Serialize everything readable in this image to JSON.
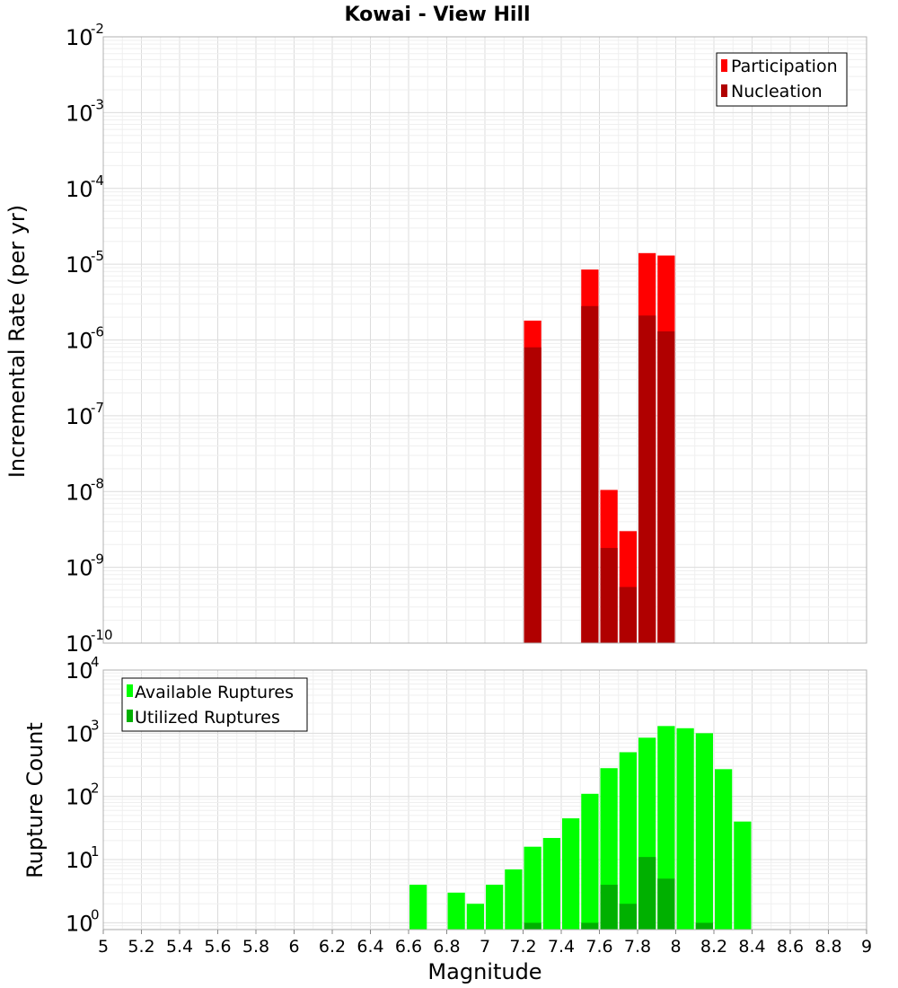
{
  "chart_data": [
    {
      "type": "bar",
      "title": "Kowai - View Hill",
      "xlabel": "Magnitude",
      "ylabel": "Incremental Rate (per yr)",
      "yscale": "log",
      "xlim": [
        5,
        9
      ],
      "ylim": [
        1e-10,
        0.01
      ],
      "y_tick_exponents": [
        -2,
        -3,
        -4,
        -5,
        -6,
        -7,
        -8,
        -9,
        -10
      ],
      "grid": true,
      "legend_position": "top-right",
      "bin_width": 0.1,
      "series": [
        {
          "name": "Participation",
          "color": "#ff0000",
          "x": [
            7.25,
            7.55,
            7.65,
            7.75,
            7.85,
            7.95
          ],
          "values": [
            1.8e-06,
            8.5e-06,
            1.05e-08,
            3e-09,
            1.4e-05,
            1.3e-05
          ]
        },
        {
          "name": "Nucleation",
          "color": "#b00000",
          "x": [
            7.25,
            7.55,
            7.65,
            7.75,
            7.85,
            7.95
          ],
          "values": [
            8e-07,
            2.8e-06,
            1.8e-09,
            5.5e-10,
            2.1e-06,
            1.3e-06
          ]
        }
      ]
    },
    {
      "type": "bar",
      "xlabel": "Magnitude",
      "ylabel": "Rupture Count",
      "yscale": "log",
      "xlim": [
        5,
        9
      ],
      "ylim": [
        0.78,
        10000
      ],
      "y_tick_exponents": [
        4,
        3,
        2,
        1,
        0
      ],
      "x_ticks": [
        "5",
        "5.2",
        "5.4",
        "5.6",
        "5.8",
        "6",
        "6.2",
        "6.4",
        "6.6",
        "6.8",
        "7",
        "7.2",
        "7.4",
        "7.6",
        "7.8",
        "8",
        "8.2",
        "8.4",
        "8.6",
        "8.8",
        "9"
      ],
      "grid": true,
      "legend_position": "top-left",
      "bin_width": 0.1,
      "series": [
        {
          "name": "Available Ruptures",
          "color": "#00ff00",
          "x": [
            6.65,
            6.85,
            6.95,
            7.05,
            7.15,
            7.25,
            7.35,
            7.45,
            7.55,
            7.65,
            7.75,
            7.85,
            7.95,
            8.05,
            8.15,
            8.25,
            8.35
          ],
          "values": [
            4,
            3,
            2,
            4,
            7,
            16,
            22,
            45,
            110,
            280,
            500,
            850,
            1300,
            1200,
            1000,
            270,
            40
          ]
        },
        {
          "name": "Utilized Ruptures",
          "color": "#00b000",
          "x": [
            7.25,
            7.55,
            7.65,
            7.75,
            7.85,
            7.95,
            8.15
          ],
          "values": [
            1,
            1,
            4,
            2,
            11,
            5,
            1
          ]
        }
      ]
    }
  ]
}
